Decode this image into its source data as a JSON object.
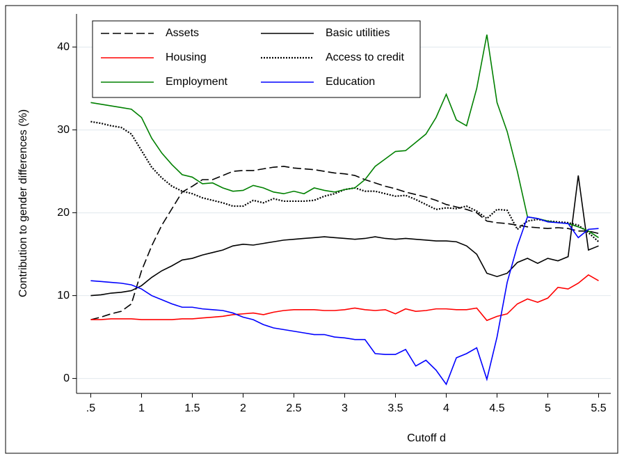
{
  "chart_data": {
    "type": "line",
    "x_label": "Cutoff d",
    "y_label": "Contribution to gender differences (%)",
    "xlim": [
      0.36,
      5.62
    ],
    "ylim": [
      -1.8,
      44
    ],
    "xticks": [
      {
        "value": 0.5,
        "label": ".5"
      },
      1,
      1.5,
      2,
      2.5,
      3,
      3.5,
      4,
      4.5,
      5,
      5.5
    ],
    "yticks": [
      0,
      10,
      20,
      30,
      40
    ],
    "grid": true,
    "legend": "top-left",
    "x": [
      0.5,
      0.6,
      0.7,
      0.8,
      0.9,
      1.0,
      1.1,
      1.2,
      1.3,
      1.4,
      1.5,
      1.6,
      1.7,
      1.8,
      1.9,
      2.0,
      2.1,
      2.2,
      2.3,
      2.4,
      2.5,
      2.6,
      2.7,
      2.8,
      2.9,
      3.0,
      3.1,
      3.2,
      3.3,
      3.4,
      3.5,
      3.6,
      3.7,
      3.8,
      3.9,
      4.0,
      4.1,
      4.2,
      4.3,
      4.4,
      4.5,
      4.6,
      4.7,
      4.8,
      4.9,
      5.0,
      5.1,
      5.2,
      5.3,
      5.4,
      5.5
    ],
    "series": [
      {
        "name": "Assets",
        "color": "#000000",
        "dash": "dashed",
        "values": [
          7.1,
          7.4,
          7.8,
          8.1,
          9,
          13,
          16,
          18.5,
          20.5,
          22.5,
          23.2,
          24,
          24,
          24.5,
          25,
          25.1,
          25.1,
          25.3,
          25.5,
          25.6,
          25.4,
          25.3,
          25.2,
          25,
          24.8,
          24.7,
          24.5,
          24,
          23.6,
          23.2,
          22.9,
          22.5,
          22.2,
          21.9,
          21.5,
          21,
          20.7,
          20.4,
          20,
          19,
          18.8,
          18.7,
          18.5,
          18.3,
          18.2,
          18.1,
          18.2,
          18.1,
          17.8,
          17.8,
          17.5
        ]
      },
      {
        "name": "Basic utilities",
        "color": "#000000",
        "dash": "solid",
        "values": [
          10,
          10.1,
          10.3,
          10.4,
          10.6,
          11.2,
          12.2,
          13,
          13.6,
          14.3,
          14.5,
          14.9,
          15.2,
          15.5,
          16,
          16.2,
          16.1,
          16.3,
          16.5,
          16.7,
          16.8,
          16.9,
          17,
          17.1,
          17,
          16.9,
          16.8,
          16.9,
          17.1,
          16.9,
          16.8,
          16.9,
          16.8,
          16.7,
          16.6,
          16.6,
          16.5,
          16,
          15,
          12.7,
          12.3,
          12.7,
          14,
          14.5,
          13.9,
          14.5,
          14.2,
          14.7,
          24.5,
          15.5,
          16
        ]
      },
      {
        "name": "Housing",
        "color": "#ff0000",
        "dash": "solid",
        "values": [
          7.1,
          7.1,
          7.2,
          7.2,
          7.2,
          7.1,
          7.1,
          7.1,
          7.1,
          7.2,
          7.2,
          7.3,
          7.4,
          7.5,
          7.7,
          7.8,
          7.9,
          7.7,
          8,
          8.2,
          8.3,
          8.3,
          8.3,
          8.2,
          8.2,
          8.3,
          8.5,
          8.3,
          8.2,
          8.3,
          7.8,
          8.4,
          8.1,
          8.2,
          8.4,
          8.4,
          8.3,
          8.3,
          8.5,
          7,
          7.5,
          7.8,
          9,
          9.6,
          9.2,
          9.7,
          11,
          10.8,
          11.5,
          12.5,
          11.8
        ]
      },
      {
        "name": "Access to credit",
        "color": "#000000",
        "dash": "dotted",
        "values": [
          31,
          30.8,
          30.5,
          30.3,
          29.5,
          27.5,
          25.5,
          24.2,
          23.2,
          22.6,
          22.3,
          21.8,
          21.5,
          21.2,
          20.8,
          20.8,
          21.5,
          21.2,
          21.7,
          21.4,
          21.4,
          21.4,
          21.5,
          22,
          22.3,
          22.8,
          23,
          22.6,
          22.6,
          22.3,
          22,
          22.1,
          21.6,
          21,
          20.4,
          20.6,
          20.5,
          20.8,
          20.2,
          19.3,
          20.4,
          20.3,
          18,
          19,
          19.2,
          19,
          18.9,
          18.8,
          18.5,
          17.6,
          16.5
        ]
      },
      {
        "name": "Employment",
        "color": "#008000",
        "dash": "solid",
        "values": [
          33.3,
          33.1,
          32.9,
          32.7,
          32.5,
          31.5,
          29,
          27.2,
          25.8,
          24.6,
          24.3,
          23.5,
          23.6,
          23,
          22.6,
          22.7,
          23.3,
          23,
          22.5,
          22.3,
          22.6,
          22.3,
          23,
          22.7,
          22.5,
          22.8,
          23,
          24,
          25.6,
          26.5,
          27.4,
          27.5,
          28.5,
          29.5,
          31.5,
          34.3,
          31.2,
          30.5,
          35,
          41.5,
          33.3,
          29.8,
          25,
          19.5,
          19.3,
          19,
          18.8,
          18.7,
          18.3,
          17.8,
          17
        ]
      },
      {
        "name": "Education",
        "color": "#0000ff",
        "dash": "solid",
        "values": [
          11.8,
          11.7,
          11.6,
          11.5,
          11.3,
          10.8,
          10,
          9.5,
          9,
          8.6,
          8.6,
          8.4,
          8.3,
          8.2,
          7.9,
          7.4,
          7.1,
          6.5,
          6.1,
          5.9,
          5.7,
          5.5,
          5.3,
          5.3,
          5,
          4.9,
          4.7,
          4.7,
          3,
          2.9,
          2.9,
          3.5,
          1.5,
          2.2,
          1,
          -0.7,
          2.5,
          3,
          3.7,
          -0.1,
          5,
          11.6,
          16,
          19.5,
          19.3,
          18.9,
          18.8,
          18.7,
          17,
          18,
          18.1
        ]
      }
    ]
  }
}
